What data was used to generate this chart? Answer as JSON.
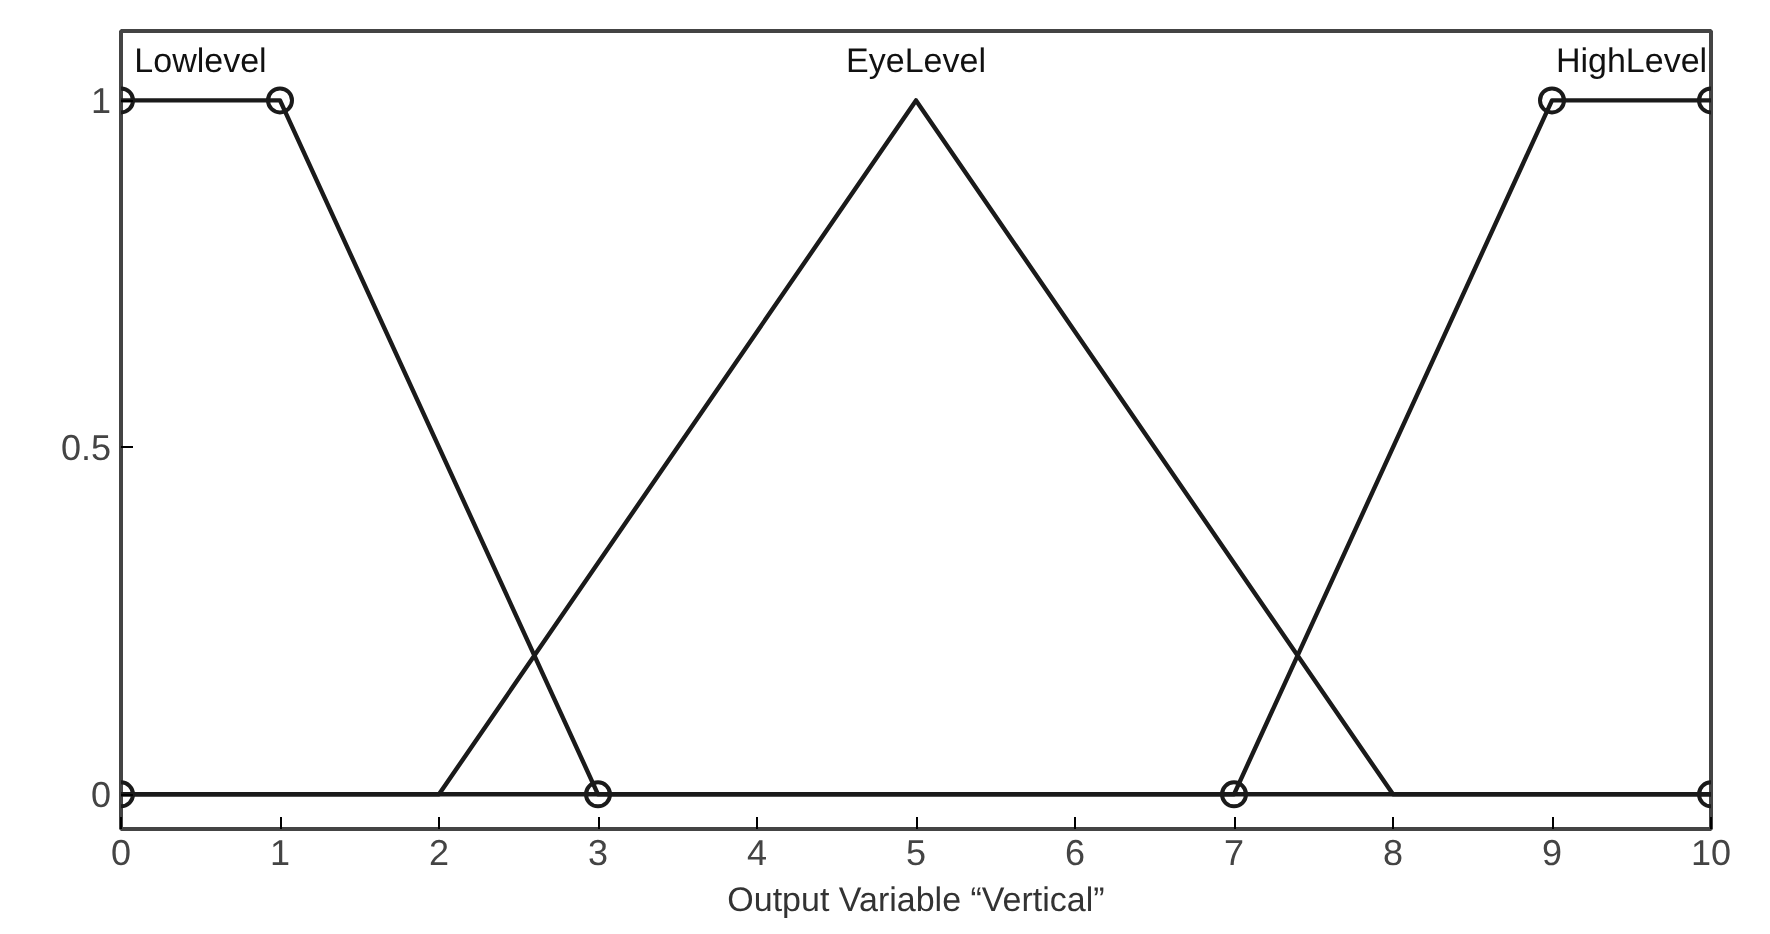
{
  "chart_data": {
    "type": "line",
    "xlabel": "Output Variable “Vertical”",
    "xlim": [
      0,
      10
    ],
    "ylim": [
      -0.05,
      1.1
    ],
    "xticks": [
      0,
      1,
      2,
      3,
      4,
      5,
      6,
      7,
      8,
      9,
      10
    ],
    "yticks": [
      0,
      0.5,
      1
    ],
    "grid": false,
    "line_style": "solid",
    "series": [
      {
        "name": "Lowlevel",
        "color": "#1a1a1a",
        "marker": "circle",
        "x": [
          0,
          1,
          3,
          10
        ],
        "values": [
          1,
          1,
          0,
          0
        ]
      },
      {
        "name": "EyeLevel",
        "color": "#1a1a1a",
        "marker": "none",
        "x": [
          0,
          2,
          5,
          8,
          10
        ],
        "values": [
          0,
          0,
          1,
          0,
          0
        ]
      },
      {
        "name": "HighLevel",
        "color": "#1a1a1a",
        "marker": "circle",
        "x": [
          0,
          7,
          9,
          10
        ],
        "values": [
          0,
          0,
          1,
          1
        ]
      }
    ]
  }
}
